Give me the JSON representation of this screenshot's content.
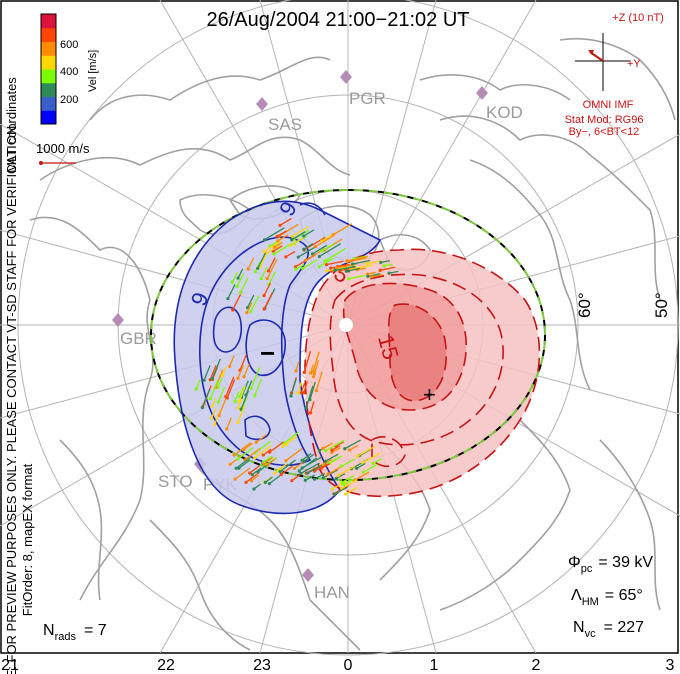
{
  "title": "26/Aug/2004 21:00−21:02 UT",
  "colorbar": {
    "label": "Vel [m/s]",
    "ticks": [
      "200",
      "400",
      "600"
    ],
    "colors": [
      "#0000ff",
      "#3a5fcd",
      "#2e8b57",
      "#7cfc00",
      "#ffd700",
      "#ff8c00",
      "#ff4500",
      "#dc143c"
    ]
  },
  "coord_label": "MLT coordinates",
  "scale_vector_label": "1000 m/s",
  "side_note": "NOTE: FOR PREVIEW PURPOSES ONLY. PLEASE CONTACT VT-SD STAFF FOR VERIFICATION.",
  "fit_note": "FitOrder: 8, mapEX format",
  "imf": {
    "scale_label": "+Z (10 nT)",
    "y_label": "+Y",
    "source": "OMNI IMF",
    "model": "Stat Mod: RG96",
    "condition": "By−, 6<BT<12"
  },
  "stations": [
    "PGR",
    "KOD",
    "SAS",
    "GBR",
    "STO",
    "PYK",
    "HAN"
  ],
  "lat_labels": [
    "60°",
    "50°"
  ],
  "contour_labels": [
    "9",
    "9",
    "15",
    "5"
  ],
  "extremum_min": "−",
  "extremum_max": "+",
  "stats": {
    "phi_pc": "Φpc = 39 kV",
    "phi_symbol": "Φ",
    "phi_sub": "pc",
    "phi_value": "= 39 kV",
    "lambda_symbol": "Λ",
    "lambda_sub": "HM",
    "lambda_value": "= 65°",
    "nvc_symbol": "N",
    "nvc_sub": "vc",
    "nvc_value": "= 227",
    "nrads_symbol": "N",
    "nrads_sub": "rads",
    "nrads_value": "= 7"
  },
  "mlt_ticks": [
    "21",
    "22",
    "23",
    "0",
    "1",
    "2",
    "3"
  ],
  "colors": {
    "neg_cell": "#c8c8ec",
    "pos_cell": "#f6c2c2",
    "neg_line": "#1c2ab0",
    "pos_line": "#c81414",
    "grid": "#b4b4b4",
    "coast": "#a0a0a0",
    "boundary_green": "#7cc83c",
    "station": "#b48cb4"
  }
}
